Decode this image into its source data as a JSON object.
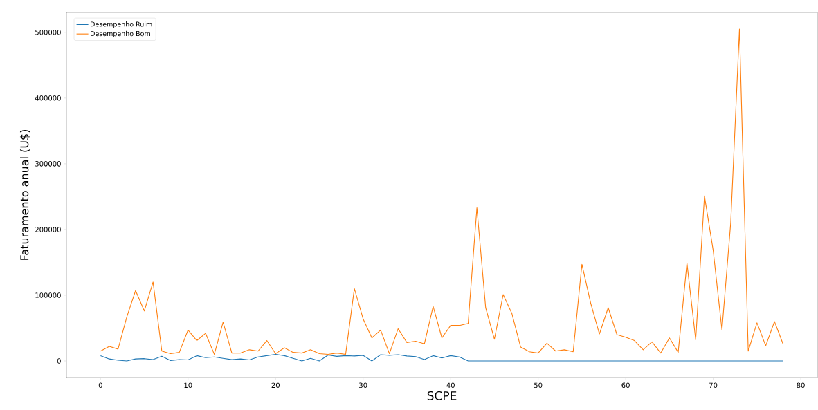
{
  "chart_data": {
    "type": "line",
    "xlabel": "SCPE",
    "ylabel": "Faturamento anual (U$)",
    "x": [
      0,
      1,
      2,
      3,
      4,
      5,
      6,
      7,
      8,
      9,
      10,
      11,
      12,
      13,
      14,
      15,
      16,
      17,
      18,
      19,
      20,
      21,
      22,
      23,
      24,
      25,
      26,
      27,
      28,
      29,
      30,
      31,
      32,
      33,
      34,
      35,
      36,
      37,
      38,
      39,
      40,
      41,
      42,
      43,
      44,
      45,
      46,
      47,
      48,
      49,
      50,
      51,
      52,
      53,
      54,
      55,
      56,
      57,
      58,
      59,
      60,
      61,
      62,
      63,
      64,
      65,
      66,
      67,
      68,
      69,
      70,
      71,
      72,
      73,
      74,
      75,
      76,
      77,
      78
    ],
    "series": [
      {
        "name": "Desempenho Ruim",
        "color": "#1f77b4",
        "values": [
          8000,
          3000,
          1000,
          0,
          3000,
          3500,
          2000,
          7000,
          500,
          2000,
          1500,
          8000,
          5000,
          6000,
          4000,
          2000,
          3000,
          1500,
          6000,
          8000,
          10000,
          8000,
          4000,
          0,
          4000,
          0,
          9000,
          7000,
          8000,
          7500,
          8500,
          0,
          9500,
          8500,
          9500,
          7500,
          6500,
          2000,
          8000,
          4500,
          8000,
          6000,
          0,
          0,
          0,
          0,
          0,
          0,
          0,
          0,
          0,
          0,
          0,
          0,
          0,
          0,
          0,
          0,
          0,
          0,
          0,
          0,
          0,
          0,
          0,
          0,
          0,
          0,
          0,
          0,
          0,
          0,
          0,
          0,
          0,
          0,
          0,
          0,
          0
        ]
      },
      {
        "name": "Desempenho Bom",
        "color": "#ff7f0e",
        "values": [
          15000,
          22000,
          18000,
          67000,
          107000,
          76000,
          120000,
          15000,
          11000,
          13000,
          47000,
          31000,
          42000,
          10000,
          59000,
          12000,
          12000,
          17000,
          15000,
          31000,
          11000,
          20000,
          13000,
          12000,
          17000,
          11000,
          10000,
          12000,
          10000,
          110000,
          64000,
          35000,
          47000,
          11000,
          49000,
          28000,
          30000,
          26000,
          83000,
          35000,
          54000,
          54000,
          57000,
          233000,
          81000,
          33000,
          101000,
          72000,
          21000,
          14000,
          12000,
          27000,
          15000,
          17000,
          14000,
          147000,
          88000,
          41000,
          81000,
          40000,
          36000,
          31000,
          17000,
          29000,
          12000,
          35000,
          13000,
          149000,
          32000,
          251000,
          168000,
          47000,
          210000,
          505000,
          15000,
          58000,
          23000,
          60000,
          25000
        ]
      }
    ],
    "xlim": [
      -3.9,
      81.9
    ],
    "ylim": [
      -25250,
      530250
    ],
    "xticks": [
      0,
      10,
      20,
      30,
      40,
      50,
      60,
      70,
      80
    ],
    "yticks": [
      0,
      100000,
      200000,
      300000,
      400000,
      500000
    ],
    "legend": "top left",
    "grid": false
  }
}
